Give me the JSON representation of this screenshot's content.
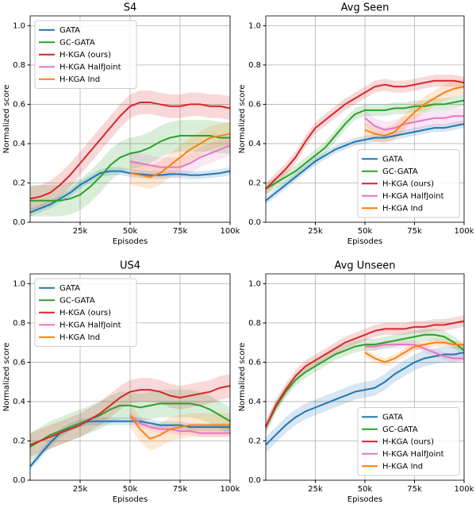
{
  "chart_data": [
    {
      "type": "line",
      "title": "S4",
      "xlabel": "Episodes",
      "ylabel": "Normalized score",
      "legend": "upper left",
      "grid": true,
      "x": [
        0,
        5000,
        10000,
        15000,
        20000,
        25000,
        30000,
        35000,
        40000,
        45000,
        50000,
        55000,
        60000,
        65000,
        70000,
        75000,
        80000,
        85000,
        90000,
        95000,
        100000
      ],
      "xlim": [
        0,
        100000
      ],
      "xticks": [
        {
          "value": 25000,
          "label": "25k"
        },
        {
          "value": 50000,
          "label": "50k"
        },
        {
          "value": 75000,
          "label": "75k"
        },
        {
          "value": 100000,
          "label": "100k"
        }
      ],
      "ylim": [
        0,
        1.05
      ],
      "yticks": [
        {
          "value": 0,
          "label": "0.0"
        },
        0.2,
        0.4,
        0.6,
        0.8,
        {
          "value": 1,
          "label": "1.0"
        }
      ],
      "series": [
        {
          "name": "GATA",
          "color": "#1f77b4",
          "spread": 0.02,
          "values": [
            0.05,
            0.07,
            0.09,
            0.12,
            0.15,
            0.19,
            0.22,
            0.25,
            0.26,
            0.26,
            0.25,
            0.245,
            0.24,
            0.24,
            0.245,
            0.245,
            0.24,
            0.24,
            0.245,
            0.25,
            0.26
          ]
        },
        {
          "name": "GC-GATA",
          "color": "#2ca02c",
          "spread": 0.08,
          "values": [
            0.11,
            0.11,
            0.11,
            0.11,
            0.12,
            0.14,
            0.18,
            0.23,
            0.29,
            0.33,
            0.35,
            0.36,
            0.38,
            0.41,
            0.43,
            0.44,
            0.44,
            0.44,
            0.44,
            0.43,
            0.43
          ]
        },
        {
          "name": "H-KGA (ours)",
          "color": "#d62728",
          "spread": 0.06,
          "values": [
            0.12,
            0.13,
            0.15,
            0.19,
            0.24,
            0.3,
            0.36,
            0.42,
            0.48,
            0.54,
            0.59,
            0.61,
            0.61,
            0.6,
            0.59,
            0.59,
            0.6,
            0.6,
            0.59,
            0.59,
            0.58
          ]
        },
        {
          "name": "H-KGA HalfJoint",
          "color": "#e377c2",
          "spread": 0.05,
          "values": [
            null,
            null,
            null,
            null,
            null,
            null,
            null,
            null,
            null,
            null,
            0.31,
            0.3,
            0.29,
            0.28,
            0.28,
            0.28,
            0.3,
            0.33,
            0.35,
            0.37,
            0.39
          ]
        },
        {
          "name": "H-KGA Ind",
          "color": "#ff7f0e",
          "spread": 0.06,
          "values": [
            null,
            null,
            null,
            null,
            null,
            null,
            null,
            null,
            null,
            null,
            0.25,
            0.24,
            0.23,
            0.25,
            0.29,
            0.33,
            0.37,
            0.4,
            0.43,
            0.44,
            0.45
          ]
        }
      ]
    },
    {
      "type": "line",
      "title": "Avg Seen",
      "xlabel": "Episodes",
      "ylabel": "Normalized score",
      "legend": "lower right",
      "grid": true,
      "x": [
        0,
        5000,
        10000,
        15000,
        20000,
        25000,
        30000,
        35000,
        40000,
        45000,
        50000,
        55000,
        60000,
        65000,
        70000,
        75000,
        80000,
        85000,
        90000,
        95000,
        100000
      ],
      "xlim": [
        0,
        100000
      ],
      "xticks": [
        {
          "value": 25000,
          "label": "25k"
        },
        {
          "value": 50000,
          "label": "50k"
        },
        {
          "value": 75000,
          "label": "75k"
        },
        {
          "value": 100000,
          "label": "100k"
        }
      ],
      "ylim": [
        0,
        1.05
      ],
      "yticks": [
        {
          "value": 0,
          "label": "0.0"
        },
        0.2,
        0.4,
        0.6,
        0.8,
        {
          "value": 1,
          "label": "1.0"
        }
      ],
      "series": [
        {
          "name": "GATA",
          "color": "#1f77b4",
          "spread": 0.02,
          "values": [
            0.11,
            0.15,
            0.19,
            0.23,
            0.27,
            0.31,
            0.34,
            0.37,
            0.39,
            0.41,
            0.42,
            0.43,
            0.43,
            0.44,
            0.45,
            0.46,
            0.47,
            0.48,
            0.48,
            0.49,
            0.5
          ]
        },
        {
          "name": "GC-GATA",
          "color": "#2ca02c",
          "spread": 0.03,
          "values": [
            0.17,
            0.2,
            0.23,
            0.26,
            0.3,
            0.34,
            0.38,
            0.44,
            0.5,
            0.55,
            0.57,
            0.57,
            0.57,
            0.58,
            0.58,
            0.59,
            0.59,
            0.6,
            0.6,
            0.61,
            0.62
          ]
        },
        {
          "name": "H-KGA (ours)",
          "color": "#d62728",
          "spread": 0.03,
          "values": [
            0.17,
            0.22,
            0.27,
            0.33,
            0.41,
            0.48,
            0.52,
            0.56,
            0.6,
            0.63,
            0.66,
            0.69,
            0.7,
            0.69,
            0.69,
            0.7,
            0.71,
            0.72,
            0.72,
            0.72,
            0.71
          ]
        },
        {
          "name": "H-KGA HalfJoint",
          "color": "#e377c2",
          "spread": 0.04,
          "values": [
            null,
            null,
            null,
            null,
            null,
            null,
            null,
            null,
            null,
            null,
            0.53,
            0.49,
            0.47,
            0.48,
            0.5,
            0.51,
            0.52,
            0.53,
            0.53,
            0.54,
            0.54
          ]
        },
        {
          "name": "H-KGA Ind",
          "color": "#ff7f0e",
          "spread": 0.04,
          "values": [
            null,
            null,
            null,
            null,
            null,
            null,
            null,
            null,
            null,
            null,
            0.47,
            0.45,
            0.44,
            0.46,
            0.51,
            0.56,
            0.6,
            0.63,
            0.66,
            0.68,
            0.69
          ]
        }
      ]
    },
    {
      "type": "line",
      "title": "US4",
      "xlabel": "Episodes",
      "ylabel": "Normalized score",
      "legend": "upper left",
      "grid": true,
      "x": [
        0,
        5000,
        10000,
        15000,
        20000,
        25000,
        30000,
        35000,
        40000,
        45000,
        50000,
        55000,
        60000,
        65000,
        70000,
        75000,
        80000,
        85000,
        90000,
        95000,
        100000
      ],
      "xlim": [
        0,
        100000
      ],
      "xticks": [
        {
          "value": 25000,
          "label": "25k"
        },
        {
          "value": 50000,
          "label": "50k"
        },
        {
          "value": 75000,
          "label": "75k"
        },
        {
          "value": 100000,
          "label": "100k"
        }
      ],
      "ylim": [
        0,
        1.05
      ],
      "yticks": [
        {
          "value": 0,
          "label": "0.0"
        },
        0.2,
        0.4,
        0.6,
        0.8,
        {
          "value": 1,
          "label": "1.0"
        }
      ],
      "series": [
        {
          "name": "GATA",
          "color": "#1f77b4",
          "spread": 0.02,
          "values": [
            0.07,
            0.13,
            0.19,
            0.24,
            0.27,
            0.29,
            0.3,
            0.3,
            0.3,
            0.3,
            0.3,
            0.3,
            0.29,
            0.28,
            0.28,
            0.28,
            0.27,
            0.27,
            0.27,
            0.27,
            0.27
          ]
        },
        {
          "name": "GC-GATA",
          "color": "#2ca02c",
          "spread": 0.07,
          "values": [
            0.17,
            0.2,
            0.23,
            0.25,
            0.27,
            0.29,
            0.31,
            0.33,
            0.36,
            0.38,
            0.38,
            0.37,
            0.38,
            0.39,
            0.39,
            0.39,
            0.39,
            0.38,
            0.36,
            0.33,
            0.3
          ]
        },
        {
          "name": "H-KGA (ours)",
          "color": "#d62728",
          "spread": 0.06,
          "values": [
            0.18,
            0.2,
            0.22,
            0.24,
            0.26,
            0.28,
            0.31,
            0.34,
            0.38,
            0.42,
            0.45,
            0.46,
            0.46,
            0.45,
            0.43,
            0.42,
            0.43,
            0.44,
            0.45,
            0.47,
            0.48
          ]
        },
        {
          "name": "H-KGA HalfJoint",
          "color": "#e377c2",
          "spread": 0.02,
          "values": [
            null,
            null,
            null,
            null,
            null,
            null,
            null,
            null,
            null,
            null,
            0.33,
            0.29,
            0.27,
            0.26,
            0.26,
            0.25,
            0.25,
            0.24,
            0.24,
            0.24,
            0.24
          ]
        },
        {
          "name": "H-KGA Ind",
          "color": "#ff7f0e",
          "spread": 0.06,
          "values": [
            null,
            null,
            null,
            null,
            null,
            null,
            null,
            null,
            null,
            null,
            0.33,
            0.26,
            0.21,
            0.23,
            0.26,
            0.27,
            0.28,
            0.28,
            0.28,
            0.28,
            0.28
          ]
        }
      ]
    },
    {
      "type": "line",
      "title": "Avg Unseen",
      "xlabel": "Episodes",
      "ylabel": "Normalized score",
      "legend": "lower right",
      "grid": true,
      "x": [
        0,
        5000,
        10000,
        15000,
        20000,
        25000,
        30000,
        35000,
        40000,
        45000,
        50000,
        55000,
        60000,
        65000,
        70000,
        75000,
        80000,
        85000,
        90000,
        95000,
        100000
      ],
      "xlim": [
        0,
        100000
      ],
      "xticks": [
        {
          "value": 25000,
          "label": "25k"
        },
        {
          "value": 50000,
          "label": "50k"
        },
        {
          "value": 75000,
          "label": "75k"
        },
        {
          "value": 100000,
          "label": "100k"
        }
      ],
      "ylim": [
        0,
        1.05
      ],
      "yticks": [
        {
          "value": 0,
          "label": "0.0"
        },
        0.2,
        0.4,
        0.6,
        0.8,
        {
          "value": 1,
          "label": "1.0"
        }
      ],
      "series": [
        {
          "name": "GATA",
          "color": "#1f77b4",
          "spread": 0.04,
          "values": [
            0.18,
            0.23,
            0.28,
            0.32,
            0.35,
            0.37,
            0.39,
            0.41,
            0.43,
            0.45,
            0.46,
            0.47,
            0.5,
            0.54,
            0.57,
            0.6,
            0.62,
            0.63,
            0.64,
            0.64,
            0.65
          ]
        },
        {
          "name": "GC-GATA",
          "color": "#2ca02c",
          "spread": 0.03,
          "values": [
            0.27,
            0.37,
            0.45,
            0.51,
            0.55,
            0.58,
            0.61,
            0.64,
            0.66,
            0.68,
            0.69,
            0.69,
            0.7,
            0.71,
            0.72,
            0.73,
            0.74,
            0.74,
            0.73,
            0.7,
            0.66
          ]
        },
        {
          "name": "H-KGA (ours)",
          "color": "#d62728",
          "spread": 0.03,
          "values": [
            0.27,
            0.38,
            0.46,
            0.53,
            0.58,
            0.61,
            0.64,
            0.67,
            0.7,
            0.72,
            0.74,
            0.76,
            0.77,
            0.77,
            0.77,
            0.78,
            0.78,
            0.79,
            0.79,
            0.8,
            0.81
          ]
        },
        {
          "name": "H-KGA HalfJoint",
          "color": "#e377c2",
          "spread": 0.02,
          "values": [
            null,
            null,
            null,
            null,
            null,
            null,
            null,
            null,
            null,
            null,
            0.68,
            0.68,
            0.69,
            0.69,
            0.69,
            0.69,
            0.67,
            0.65,
            0.63,
            0.62,
            0.62
          ]
        },
        {
          "name": "H-KGA Ind",
          "color": "#ff7f0e",
          "spread": 0.02,
          "values": [
            null,
            null,
            null,
            null,
            null,
            null,
            null,
            null,
            null,
            null,
            0.65,
            0.62,
            0.6,
            0.62,
            0.65,
            0.68,
            0.69,
            0.7,
            0.7,
            0.69,
            0.69
          ]
        }
      ]
    }
  ]
}
